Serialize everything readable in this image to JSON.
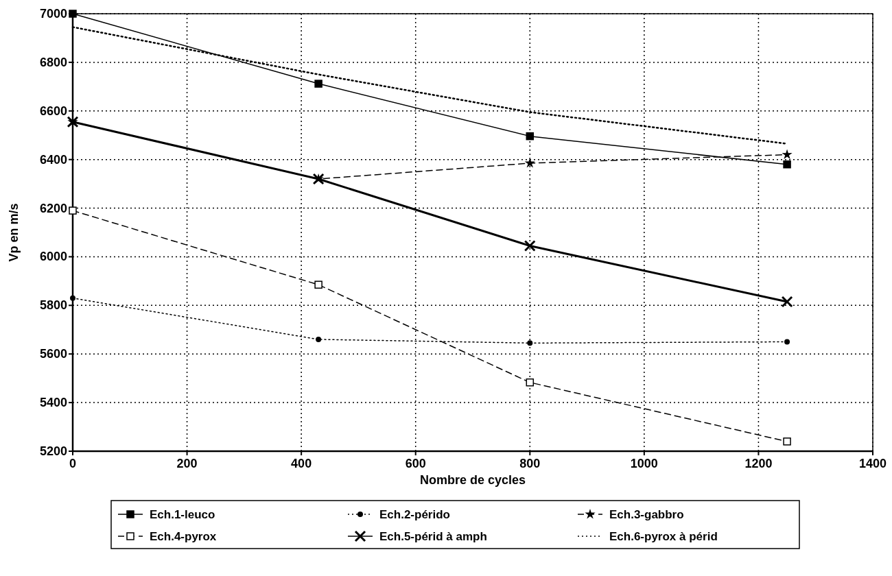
{
  "chart_data": {
    "type": "line",
    "xlabel": "Nombre de cycles",
    "ylabel": "Vp en m/s",
    "x": [
      0,
      430,
      800,
      1250
    ],
    "xlim": [
      0,
      1400
    ],
    "xticks": [
      0,
      200,
      400,
      600,
      800,
      1000,
      1200,
      1400
    ],
    "ylim": [
      5200,
      7000
    ],
    "yticks": [
      5200,
      5400,
      5600,
      5800,
      6000,
      6200,
      6400,
      6600,
      6800,
      7000
    ],
    "grid": true,
    "legend": "bottom",
    "series": [
      {
        "name": "Ech.1-leuco",
        "color": "#000000",
        "values": [
          7000,
          6712,
          6496,
          6380
        ],
        "marker": "square",
        "line_style": "solid"
      },
      {
        "name": "Ech.2-pérido",
        "color": "#000000",
        "values": [
          5830,
          5660,
          5645,
          5650
        ],
        "marker": "circle",
        "line_style": "dotted"
      },
      {
        "name": "Ech.3-gabbro",
        "color": "#000000",
        "values": [
          6555,
          6320,
          6385,
          6420
        ],
        "marker": "star",
        "line_style": "dashed"
      },
      {
        "name": "Ech.4-pyrox",
        "color": "#000000",
        "values": [
          6190,
          5885,
          5483,
          5240
        ],
        "marker": "square",
        "line_style": "dashed"
      },
      {
        "name": "Ech.5-périd à amph",
        "color": "#000000",
        "values": [
          6555,
          6320,
          6045,
          5815
        ],
        "marker": "cross",
        "line_style": "solid"
      },
      {
        "name": "Ech.6-pyrox à périd",
        "color": "#000000",
        "values": [
          6945,
          6750,
          6595,
          6465
        ],
        "marker": "none",
        "line_style": "dotted"
      }
    ]
  }
}
